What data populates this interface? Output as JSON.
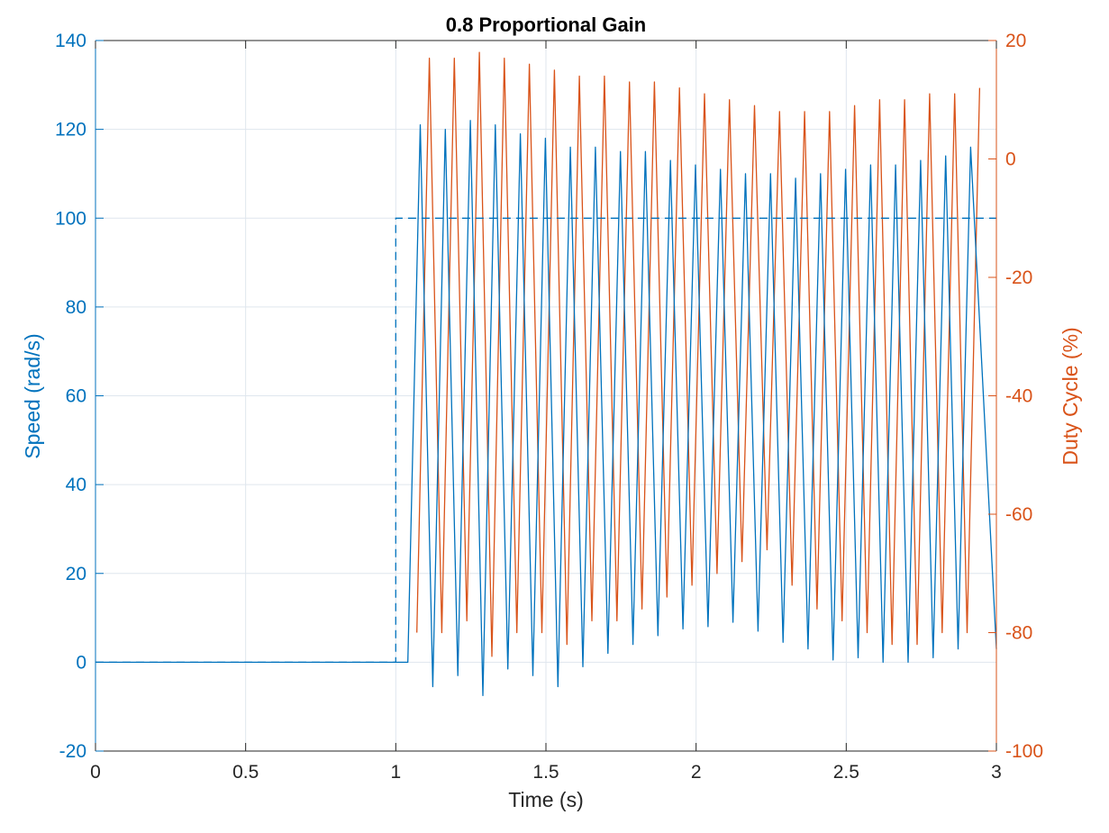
{
  "chart_data": {
    "type": "line",
    "title": "0.8 Proportional Gain",
    "xlabel": "Time (s)",
    "ylabel_left": "Speed (rad/s)",
    "ylabel_right": "Duty Cycle (%)",
    "xlim": [
      0,
      3
    ],
    "ylim_left": [
      -20,
      140
    ],
    "ylim_right": [
      -100,
      20
    ],
    "grid": true,
    "x_ticks": [
      "0",
      "0.5",
      "1",
      "1.5",
      "2",
      "2.5",
      "3"
    ],
    "y_left_ticks": [
      "-20",
      "0",
      "20",
      "40",
      "60",
      "80",
      "100",
      "120",
      "140"
    ],
    "y_right_ticks": [
      "-100",
      "-80",
      "-60",
      "-40",
      "-20",
      "0",
      "20"
    ],
    "colors": {
      "speed": "#0072bd",
      "duty": "#d95319",
      "axis": "#262626"
    },
    "setpoint": {
      "axis": "left",
      "style": "dashed",
      "x": [
        0,
        1.0,
        1.0,
        3.0
      ],
      "y": [
        0,
        0,
        100,
        100
      ]
    },
    "speed_series": {
      "axis": "left",
      "style": "solid",
      "start_time": 1.04,
      "period": 0.0833,
      "peaks": [
        121,
        120,
        122,
        121,
        119,
        118,
        116,
        116,
        115,
        115,
        113,
        112,
        111,
        110,
        110,
        109,
        110,
        111,
        112,
        112,
        113,
        114,
        116
      ],
      "troughs": [
        -5.5,
        -3,
        -7.5,
        -1.5,
        -3,
        -5.5,
        -1,
        2,
        4,
        6,
        7.5,
        8,
        9,
        7,
        4.5,
        3,
        0.5,
        1,
        0,
        0,
        1,
        3
      ]
    },
    "duty_series": {
      "axis": "right",
      "style": "solid",
      "start_time": 1.07,
      "period": 0.0833,
      "peaks": [
        17,
        17,
        18,
        17,
        16,
        15,
        14,
        14,
        13,
        13,
        12,
        11,
        10,
        9,
        8,
        8,
        8,
        9,
        10,
        10,
        11,
        11,
        12
      ],
      "troughs": [
        -80,
        -78,
        -84,
        -80,
        -80,
        -82,
        -78,
        -78,
        -76,
        -74,
        -72,
        -70,
        -68,
        -66,
        -72,
        -76,
        -78,
        -80,
        -82,
        -82,
        -80,
        -80
      ]
    }
  }
}
